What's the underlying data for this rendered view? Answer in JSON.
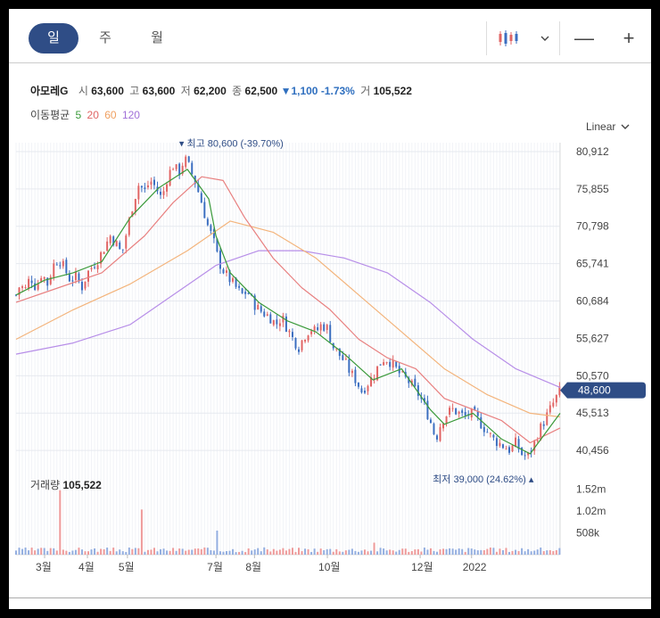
{
  "tabs": [
    "일",
    "주",
    "월"
  ],
  "active_tab": 0,
  "toolbar": {
    "chart_type_icon": "candlestick-icon",
    "zoom_out": "—",
    "zoom_in": "+"
  },
  "quote": {
    "name": "아모레G",
    "open_label": "시",
    "open": "63,600",
    "high_label": "고",
    "high": "63,600",
    "low_label": "저",
    "low": "62,200",
    "close_label": "종",
    "close": "62,500",
    "change": "▼1,100",
    "change_pct": "-1.73%",
    "volume_label": "거",
    "volume": "105,522"
  },
  "ma_legend": {
    "label": "이동평균",
    "items": [
      {
        "period": "5",
        "color": "#3a9a3a"
      },
      {
        "period": "20",
        "color": "#e06464"
      },
      {
        "period": "60",
        "color": "#f0a060"
      },
      {
        "period": "120",
        "color": "#a070d8"
      }
    ]
  },
  "scale_mode": "Linear",
  "volume_panel": {
    "label": "거래량",
    "value": "105,522"
  },
  "colors": {
    "up": "#e06464",
    "down": "#3b6ec0",
    "accent": "#2f4d86"
  },
  "chart_data": {
    "type": "candlestick",
    "y_ticks": [
      "80,912",
      "75,855",
      "70,798",
      "65,741",
      "60,684",
      "55,627",
      "50,570",
      "45,513",
      "40,456"
    ],
    "y_tick_values": [
      80912,
      75855,
      70798,
      65741,
      60684,
      55627,
      50570,
      45513,
      40456
    ],
    "x_ticks": [
      "3월",
      "4월",
      "5월",
      "7월",
      "8월",
      "10월",
      "12월",
      "2022"
    ],
    "current_price_label": "48,600",
    "current_price": 48600,
    "high_annotation": {
      "label": "최고",
      "value": "80,600 (-39.70%)",
      "price": 80600
    },
    "low_annotation": {
      "label": "최저",
      "value": "39,000 (24.62%)",
      "price": 39000
    },
    "volume_ticks": [
      "1.52m",
      "1.02m",
      "508k"
    ],
    "price_path": [
      [
        0,
        61500
      ],
      [
        3,
        63000
      ],
      [
        6,
        62000
      ],
      [
        10,
        64000
      ],
      [
        14,
        62500
      ],
      [
        18,
        64500
      ],
      [
        22,
        63000
      ],
      [
        26,
        65500
      ],
      [
        30,
        66500
      ],
      [
        34,
        65000
      ],
      [
        38,
        63500
      ],
      [
        42,
        64000
      ],
      [
        46,
        62500
      ],
      [
        50,
        64500
      ],
      [
        54,
        65500
      ],
      [
        58,
        66500
      ],
      [
        62,
        68000
      ],
      [
        66,
        69500
      ],
      [
        70,
        68500
      ],
      [
        74,
        67000
      ],
      [
        78,
        70500
      ],
      [
        82,
        74000
      ],
      [
        86,
        76500
      ],
      [
        90,
        75500
      ],
      [
        94,
        77000
      ],
      [
        98,
        76000
      ],
      [
        102,
        74500
      ],
      [
        106,
        77500
      ],
      [
        110,
        79000
      ],
      [
        114,
        78000
      ],
      [
        118,
        80000
      ],
      [
        122,
        78500
      ],
      [
        126,
        76500
      ],
      [
        130,
        74000
      ],
      [
        134,
        71000
      ],
      [
        138,
        69000
      ],
      [
        142,
        66000
      ],
      [
        146,
        64500
      ],
      [
        150,
        63500
      ],
      [
        154,
        62500
      ],
      [
        158,
        61500
      ],
      [
        162,
        62000
      ],
      [
        166,
        60500
      ],
      [
        170,
        59500
      ],
      [
        174,
        59000
      ],
      [
        178,
        58500
      ],
      [
        182,
        57500
      ],
      [
        186,
        58500
      ],
      [
        190,
        57000
      ],
      [
        194,
        55500
      ],
      [
        198,
        54500
      ],
      [
        202,
        56000
      ],
      [
        206,
        57000
      ],
      [
        210,
        56500
      ],
      [
        214,
        57500
      ],
      [
        218,
        57000
      ],
      [
        222,
        54500
      ],
      [
        226,
        53500
      ],
      [
        230,
        52500
      ],
      [
        234,
        51000
      ],
      [
        238,
        50000
      ],
      [
        242,
        48500
      ],
      [
        246,
        49500
      ],
      [
        250,
        50500
      ],
      [
        254,
        52000
      ],
      [
        258,
        53000
      ],
      [
        262,
        52500
      ],
      [
        266,
        51500
      ],
      [
        270,
        50500
      ],
      [
        274,
        50000
      ],
      [
        278,
        49000
      ],
      [
        282,
        48000
      ],
      [
        286,
        46500
      ],
      [
        290,
        44500
      ],
      [
        294,
        42000
      ],
      [
        298,
        44500
      ],
      [
        302,
        45500
      ],
      [
        306,
        46000
      ],
      [
        310,
        45500
      ],
      [
        314,
        45000
      ],
      [
        318,
        45500
      ],
      [
        322,
        45000
      ],
      [
        326,
        44000
      ],
      [
        330,
        43000
      ],
      [
        334,
        42000
      ],
      [
        338,
        41500
      ],
      [
        342,
        41000
      ],
      [
        346,
        40500
      ],
      [
        350,
        41500
      ],
      [
        354,
        40000
      ],
      [
        358,
        39500
      ],
      [
        362,
        41000
      ],
      [
        366,
        43000
      ],
      [
        370,
        44500
      ],
      [
        374,
        46000
      ],
      [
        378,
        47500
      ],
      [
        381,
        48600
      ]
    ],
    "ma5": [
      [
        0,
        61500
      ],
      [
        20,
        63500
      ],
      [
        40,
        64500
      ],
      [
        60,
        66000
      ],
      [
        80,
        72000
      ],
      [
        100,
        76000
      ],
      [
        120,
        78500
      ],
      [
        135,
        74500
      ],
      [
        140,
        69500
      ],
      [
        150,
        64500
      ],
      [
        170,
        60500
      ],
      [
        190,
        58000
      ],
      [
        210,
        56500
      ],
      [
        230,
        53500
      ],
      [
        250,
        50000
      ],
      [
        270,
        51500
      ],
      [
        290,
        46000
      ],
      [
        300,
        44000
      ],
      [
        320,
        45500
      ],
      [
        340,
        42000
      ],
      [
        360,
        40000
      ],
      [
        381,
        45500
      ]
    ],
    "ma20": [
      [
        0,
        60500
      ],
      [
        30,
        62500
      ],
      [
        60,
        64500
      ],
      [
        90,
        69500
      ],
      [
        110,
        74000
      ],
      [
        130,
        77500
      ],
      [
        145,
        77000
      ],
      [
        160,
        72000
      ],
      [
        180,
        66500
      ],
      [
        200,
        62500
      ],
      [
        220,
        59500
      ],
      [
        240,
        55500
      ],
      [
        260,
        53000
      ],
      [
        280,
        51500
      ],
      [
        300,
        47500
      ],
      [
        320,
        46000
      ],
      [
        340,
        44500
      ],
      [
        360,
        41500
      ],
      [
        381,
        43500
      ]
    ],
    "ma60": [
      [
        0,
        55500
      ],
      [
        40,
        59500
      ],
      [
        80,
        63000
      ],
      [
        120,
        67500
      ],
      [
        150,
        71500
      ],
      [
        180,
        70000
      ],
      [
        210,
        66500
      ],
      [
        240,
        61500
      ],
      [
        270,
        56500
      ],
      [
        300,
        51500
      ],
      [
        330,
        48000
      ],
      [
        360,
        45500
      ],
      [
        381,
        45000
      ]
    ],
    "ma120": [
      [
        0,
        53500
      ],
      [
        40,
        55000
      ],
      [
        80,
        57500
      ],
      [
        110,
        61500
      ],
      [
        140,
        65500
      ],
      [
        170,
        67500
      ],
      [
        200,
        67500
      ],
      [
        230,
        66500
      ],
      [
        260,
        64500
      ],
      [
        290,
        60500
      ],
      [
        320,
        55500
      ],
      [
        350,
        51500
      ],
      [
        381,
        49000
      ]
    ],
    "volume_spikes": [
      [
        30,
        1500000
      ],
      [
        88,
        1050000
      ],
      [
        140,
        560000
      ],
      [
        250,
        280000
      ],
      [
        355,
        150000
      ]
    ]
  }
}
